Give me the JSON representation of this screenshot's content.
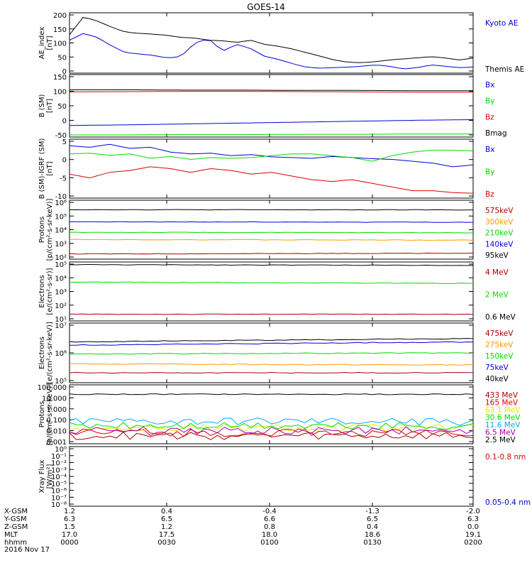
{
  "title": "GOES-14",
  "colors": {
    "black": "#000000",
    "blue": "#0000dd",
    "green": "#00dd00",
    "red": "#dd0000",
    "darkred": "#aa0000",
    "orange": "#ff9900",
    "yellow": "#e8e800",
    "cyan": "#00aaff",
    "purple": "#aa00aa"
  },
  "panels": [
    {
      "id": "ae",
      "ylabel": [
        "AE_index",
        "[nT]"
      ],
      "yticks": [
        "200",
        "150",
        "100",
        "50",
        "0"
      ],
      "legend": [
        {
          "text": "Kyoto AE",
          "color": "#0000dd"
        },
        {
          "text": "Themis AE",
          "color": "#000000"
        }
      ]
    },
    {
      "id": "bsm",
      "ylabel": [
        "B (SM)",
        "[nT]"
      ],
      "yticks": [
        "150",
        "100",
        "50",
        "0",
        "-50"
      ],
      "legend": [
        {
          "text": "Bx",
          "color": "#0000dd"
        },
        {
          "text": "By",
          "color": "#00dd00"
        },
        {
          "text": "Bz",
          "color": "#dd0000"
        },
        {
          "text": "Bmag",
          "color": "#000000"
        }
      ]
    },
    {
      "id": "bigrf",
      "ylabel": [
        "B (SM)-IGRF (SM)",
        "[nT]"
      ],
      "yticks": [
        "5",
        "0",
        "-5",
        "-10"
      ],
      "legend": [
        {
          "text": "Bx",
          "color": "#0000dd"
        },
        {
          "text": "By",
          "color": "#00dd00"
        },
        {
          "text": "Bz",
          "color": "#dd0000"
        }
      ]
    },
    {
      "id": "protons1",
      "ylabel": [
        "Protons",
        "[p/(cm²-s-sr-keV)]"
      ],
      "yticks": [
        "10⁶",
        "10⁵",
        "10⁴",
        "10³",
        "10²"
      ],
      "legend": [
        {
          "text": "575keV",
          "color": "#aa0000"
        },
        {
          "text": "300keV",
          "color": "#ff9900"
        },
        {
          "text": "210keV",
          "color": "#00dd00"
        },
        {
          "text": "140keV",
          "color": "#0000dd"
        },
        {
          "text": "95keV",
          "color": "#000000"
        }
      ]
    },
    {
      "id": "electrons1",
      "ylabel": [
        "Electrons",
        "[e/(cm²-s-sr)]"
      ],
      "yticks": [
        "10⁵",
        "10⁴",
        "10³",
        "10²",
        "10¹"
      ],
      "legend": [
        {
          "text": "4 MeV",
          "color": "#aa0000"
        },
        {
          "text": "2 MeV",
          "color": "#00dd00"
        },
        {
          "text": "0.6 MeV",
          "color": "#000000"
        }
      ]
    },
    {
      "id": "electrons2",
      "ylabel": [
        "Electrons",
        "[e/(cm²-s-sr-keV)]"
      ],
      "yticks": [
        "10⁷",
        "10⁶",
        "10⁵"
      ],
      "legend": [
        {
          "text": "475keV",
          "color": "#aa0000"
        },
        {
          "text": "275keV",
          "color": "#ff9900"
        },
        {
          "text": "150keV",
          "color": "#00dd00"
        },
        {
          "text": "75keV",
          "color": "#0000dd"
        },
        {
          "text": "40keV",
          "color": "#000000"
        }
      ]
    },
    {
      "id": "protons2",
      "ylabel": [
        "Protons",
        "[p/(cm²-s-sr-keV)]"
      ],
      "yticks": [
        "100.000",
        "10.000",
        "1.000",
        "0.100",
        "0.010",
        "0.001"
      ],
      "legend": [
        {
          "text": "433 MeV",
          "color": "#aa0000"
        },
        {
          "text": "165 MeV",
          "color": "#dd0000"
        },
        {
          "text": "63.1 MeV",
          "color": "#e8e800"
        },
        {
          "text": "30.6 MeV",
          "color": "#00dd00"
        },
        {
          "text": "11.6 MeV",
          "color": "#00aaff"
        },
        {
          "text": "6.5 MeV",
          "color": "#aa00aa"
        },
        {
          "text": "2.5 MeV",
          "color": "#000000"
        }
      ]
    },
    {
      "id": "xray",
      "ylabel": [
        "Xray Flux",
        "[W/m²]"
      ],
      "yticks": [
        "10⁰",
        "10⁻¹",
        "10⁻²",
        "10⁻³",
        "10⁻⁴",
        "10⁻⁵",
        "10⁻⁶",
        "10⁻⁷",
        "10⁻⁸"
      ],
      "legend": [
        {
          "text": "0.1-0.8 nm",
          "color": "#dd0000"
        },
        {
          "text": "0.05-0.4 nm",
          "color": "#0000dd"
        }
      ]
    }
  ],
  "footer": {
    "labels": [
      "X-GSM",
      "Y-GSM",
      "Z-GSM",
      "MLT",
      "hhmm",
      "2016 Nov 17"
    ],
    "columns": [
      [
        "1.2",
        "6.3",
        "1.5",
        "17.0",
        "0000"
      ],
      [
        "0.4",
        "6.5",
        "1.2",
        "17.5",
        "0030"
      ],
      [
        "-0.4",
        "6.6",
        "0.8",
        "18.0",
        "0100"
      ],
      [
        "-1.3",
        "6.5",
        "0.4",
        "18.6",
        "0130"
      ],
      [
        "-2.0",
        "6.3",
        "0.0",
        "19.1",
        "0200"
      ]
    ]
  },
  "chart_data": {
    "type": "line",
    "title": "GOES-14",
    "x": [
      "0000",
      "0030",
      "0100",
      "0130",
      "0200"
    ],
    "panels": {
      "ae": {
        "ylim": [
          0,
          220
        ],
        "series": [
          {
            "name": "Themis AE",
            "color": "#000000",
            "values": [
              140,
              205,
              190,
              168,
              150,
              145,
              142,
              138,
              130,
              128,
              120,
              118,
              112,
              120,
              105,
              98,
              88,
              75,
              62,
              48,
              40,
              38,
              42,
              48,
              52,
              56,
              60,
              55,
              48,
              55
            ]
          },
          {
            "name": "Kyoto AE",
            "color": "#0000dd",
            "values": [
              120,
              145,
              130,
              100,
              75,
              70,
              65,
              55,
              60,
              110,
              125,
              80,
              105,
              90,
              62,
              50,
              35,
              22,
              18,
              20,
              22,
              25,
              30,
              25,
              15,
              20,
              30,
              25,
              20,
              22
            ]
          }
        ]
      },
      "bsm": {
        "ylim": [
          -55,
          150
        ],
        "series": [
          {
            "name": "Bmag",
            "color": "#000000",
            "values": [
              100,
              100,
              99,
              99,
              98,
              98,
              97,
              97
            ]
          },
          {
            "name": "Bz",
            "color": "#dd0000",
            "values": [
              93,
              94,
              95,
              95,
              94,
              93,
              92,
              92
            ]
          },
          {
            "name": "Bx",
            "color": "#0000dd",
            "values": [
              -17,
              -15,
              -12,
              -9,
              -6,
              -3,
              0,
              2
            ]
          },
          {
            "name": "By",
            "color": "#00dd00",
            "values": [
              -48,
              -48,
              -47,
              -47,
              -46,
              -46,
              -45,
              -45
            ]
          }
        ]
      },
      "bigrf": {
        "ylim": [
          -11,
          5
        ],
        "series": [
          {
            "name": "Bx",
            "color": "#0000dd",
            "values": [
              3.2,
              2.8,
              3.6,
              2.5,
              2.8,
              1.5,
              1.0,
              1.2,
              0.5,
              0.8,
              0.2,
              0.0,
              -0.2,
              0.3,
              0.0,
              -0.3,
              -0.5,
              -1.0,
              -1.5,
              -2.5,
              -2.0
            ]
          },
          {
            "name": "By",
            "color": "#00dd00",
            "values": [
              1.0,
              1.2,
              0.6,
              1.0,
              -0.2,
              0.3,
              -0.5,
              0.0,
              -0.2,
              0.0,
              0.5,
              1.0,
              1.0,
              0.5,
              0.0,
              -1.0,
              0.5,
              1.5,
              2.0,
              2.0,
              1.8
            ]
          },
          {
            "name": "Bz",
            "color": "#dd0000",
            "values": [
              -4.5,
              -5.5,
              -4.0,
              -3.5,
              -2.5,
              -3.0,
              -4.0,
              -3.0,
              -3.5,
              -4.5,
              -4.0,
              -5.0,
              -6.0,
              -6.5,
              -6.0,
              -7.0,
              -8.0,
              -9.0,
              -9.0,
              -9.5,
              -9.7
            ]
          }
        ]
      },
      "protons1": {
        "ylim_log10": [
          1.7,
          6.2
        ],
        "series": [
          {
            "name": "95keV",
            "color": "#000000",
            "values_log10": [
              5.48,
              5.46
            ]
          },
          {
            "name": "140keV",
            "color": "#0000dd",
            "values_log10": [
              4.55,
              4.52
            ]
          },
          {
            "name": "210keV",
            "color": "#00dd00",
            "values_log10": [
              3.75,
              3.72
            ]
          },
          {
            "name": "300keV",
            "color": "#ff9900",
            "values_log10": [
              3.2,
              3.15
            ]
          },
          {
            "name": "575keV",
            "color": "#aa0000",
            "values_log10": [
              2.1,
              2.15
            ]
          }
        ]
      },
      "electrons1": {
        "ylim_log10": [
          0.7,
          5.1
        ],
        "series": [
          {
            "name": "0.6 MeV",
            "color": "#000000",
            "values_log10": [
              4.9,
              4.85
            ]
          },
          {
            "name": "2 MeV",
            "color": "#00dd00",
            "values_log10": [
              3.6,
              3.5
            ]
          },
          {
            "name": "4 MeV",
            "color": "#aa0000",
            "values_log10": [
              1.2,
              1.2
            ]
          }
        ]
      },
      "electrons2": {
        "ylim_log10": [
          4.3,
          7.0
        ],
        "series": [
          {
            "name": "40keV",
            "color": "#000000",
            "values_log10": [
              6.15,
              6.3
            ]
          },
          {
            "name": "75keV",
            "color": "#0000dd",
            "values_log10": [
              6.0,
              6.15
            ]
          },
          {
            "name": "150keV",
            "color": "#00dd00",
            "values_log10": [
              5.6,
              5.65
            ]
          },
          {
            "name": "275keV",
            "color": "#ff9900",
            "values_log10": [
              5.15,
              5.1
            ]
          },
          {
            "name": "475keV",
            "color": "#aa0000",
            "values_log10": [
              4.75,
              4.75
            ]
          }
        ]
      },
      "protons2": {
        "ylim_log10": [
          -3.2,
          2.1
        ],
        "series": [
          {
            "name": "433 MeV",
            "color": "#aa0000",
            "values_log10": [
              -2.5,
              -2.5
            ]
          },
          {
            "name": "165 MeV",
            "color": "#dd0000",
            "values_log10": [
              -2.2,
              -2.2
            ]
          },
          {
            "name": "63.1 MeV",
            "color": "#e8e800",
            "values_log10": [
              -1.8,
              -1.8
            ]
          },
          {
            "name": "30.6 MeV",
            "color": "#00dd00",
            "values_log10": [
              -1.6,
              -1.6
            ]
          },
          {
            "name": "11.6 MeV",
            "color": "#00aaff",
            "values_log10": [
              -1.2,
              -1.2
            ]
          },
          {
            "name": "6.5 MeV",
            "color": "#aa00aa",
            "values_log10": [
              -2.0,
              -2.0
            ]
          },
          {
            "name": "2.5 MeV",
            "color": "#000000",
            "values_log10": [
              1.25,
              1.25
            ]
          }
        ]
      },
      "xray": {
        "ylim_log10": [
          -8,
          0
        ],
        "series": []
      }
    }
  }
}
